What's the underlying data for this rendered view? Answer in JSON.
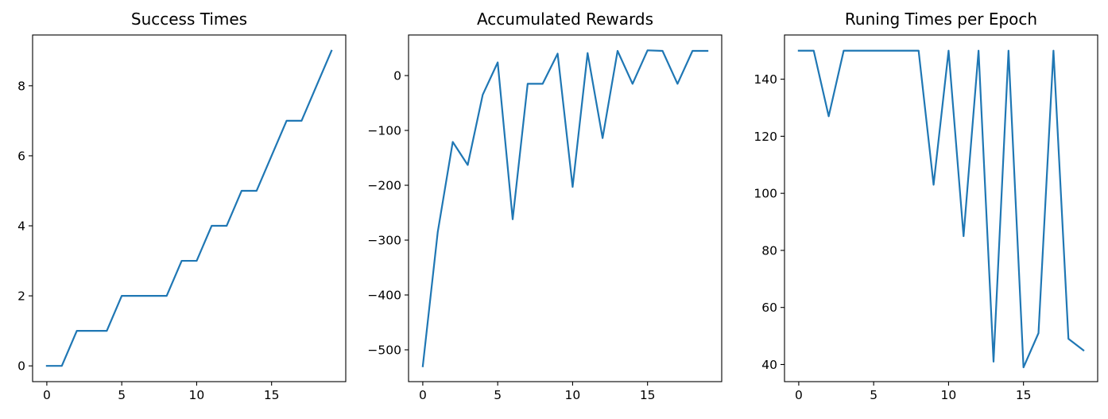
{
  "chart_data": [
    {
      "type": "line",
      "title": "Success Times",
      "xlabel": "",
      "ylabel": "",
      "x": [
        0,
        1,
        2,
        3,
        4,
        5,
        6,
        7,
        8,
        9,
        10,
        11,
        12,
        13,
        14,
        15,
        16,
        17,
        18,
        19
      ],
      "series": [
        {
          "values": [
            0,
            0,
            1,
            1,
            1,
            2,
            2,
            2,
            2,
            3,
            3,
            4,
            4,
            5,
            5,
            6,
            7,
            7,
            8,
            9
          ]
        }
      ],
      "xlim": [
        -0.95,
        19.95
      ],
      "ylim": [
        -0.45,
        9.45
      ],
      "xticks": [
        0,
        5,
        10,
        15
      ],
      "yticks": [
        0,
        2,
        4,
        6,
        8
      ],
      "xtick_labels": [
        "0",
        "5",
        "10",
        "15"
      ],
      "ytick_labels": [
        "0",
        "2",
        "4",
        "6",
        "8"
      ],
      "grid": false,
      "color": "#1f77b4"
    },
    {
      "type": "line",
      "title": "Accumulated Rewards",
      "xlabel": "",
      "ylabel": "",
      "x": [
        0,
        1,
        2,
        3,
        4,
        5,
        6,
        7,
        8,
        9,
        10,
        11,
        12,
        13,
        14,
        15,
        16,
        17,
        18,
        19
      ],
      "series": [
        {
          "values": [
            -530,
            -285,
            -121,
            -163,
            -35,
            24,
            -262,
            -15,
            -15,
            40,
            -203,
            41,
            -114,
            45,
            -15,
            46,
            45,
            -15,
            45,
            45
          ]
        }
      ],
      "xlim": [
        -0.95,
        19.95
      ],
      "ylim": [
        -558,
        74
      ],
      "xticks": [
        0,
        5,
        10,
        15
      ],
      "yticks": [
        -500,
        -400,
        -300,
        -200,
        -100,
        0
      ],
      "xtick_labels": [
        "0",
        "5",
        "10",
        "15"
      ],
      "ytick_labels": [
        "−500",
        "−400",
        "−300",
        "−200",
        "−100",
        "0"
      ],
      "grid": false,
      "color": "#1f77b4"
    },
    {
      "type": "line",
      "title": "Runing Times per Epoch",
      "xlabel": "",
      "ylabel": "",
      "x": [
        0,
        1,
        2,
        3,
        4,
        5,
        6,
        7,
        8,
        9,
        10,
        11,
        12,
        13,
        14,
        15,
        16,
        17,
        18,
        19
      ],
      "series": [
        {
          "values": [
            150,
            150,
            127,
            150,
            150,
            150,
            150,
            150,
            150,
            103,
            150,
            85,
            150,
            41,
            150,
            39,
            51,
            150,
            49,
            45
          ]
        }
      ],
      "xlim": [
        -0.95,
        19.95
      ],
      "ylim": [
        34,
        155.5
      ],
      "xticks": [
        0,
        5,
        10,
        15
      ],
      "yticks": [
        40,
        60,
        80,
        100,
        120,
        140
      ],
      "xtick_labels": [
        "0",
        "5",
        "10",
        "15"
      ],
      "ytick_labels": [
        "40",
        "60",
        "80",
        "100",
        "120",
        "140"
      ],
      "grid": false,
      "color": "#1f77b4"
    }
  ]
}
